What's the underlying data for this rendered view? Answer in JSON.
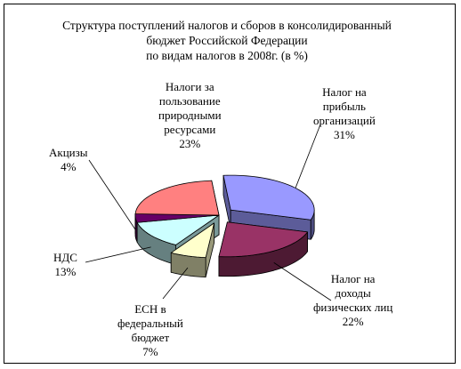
{
  "chart_data": {
    "type": "pie",
    "title_lines": [
      "Структура поступлений налогов и сборов в консолидированный",
      "бюджет Российской Федерации",
      "по видам налогов в 2008г. (в %)"
    ],
    "slices": [
      {
        "label_lines": [
          "Налог на",
          "прибыль",
          "организаций"
        ],
        "value": 31,
        "value_label": "31%",
        "color": "#9999ff",
        "exploded": true
      },
      {
        "label_lines": [
          "Налог на",
          "доходы",
          "физических лиц"
        ],
        "value": 22,
        "value_label": "22%",
        "color": "#993366",
        "exploded": true
      },
      {
        "label_lines": [
          "ЕСН в",
          "федеральный",
          "бюджет"
        ],
        "value": 7,
        "value_label": "7%",
        "color": "#ffffcc",
        "exploded": true
      },
      {
        "label_lines": [
          "НДС"
        ],
        "value": 13,
        "value_label": "13%",
        "color": "#ccffff",
        "exploded": false
      },
      {
        "label_lines": [
          "Акцизы"
        ],
        "value": 4,
        "value_label": "4%",
        "color": "#660066",
        "exploded": false
      },
      {
        "label_lines": [
          "Налоги за",
          "пользование",
          "природными",
          "ресурсами"
        ],
        "value": 23,
        "value_label": "23%",
        "color": "#ff8080",
        "exploded": false
      }
    ],
    "legend": "none",
    "style": "3d-exploded-pie"
  }
}
